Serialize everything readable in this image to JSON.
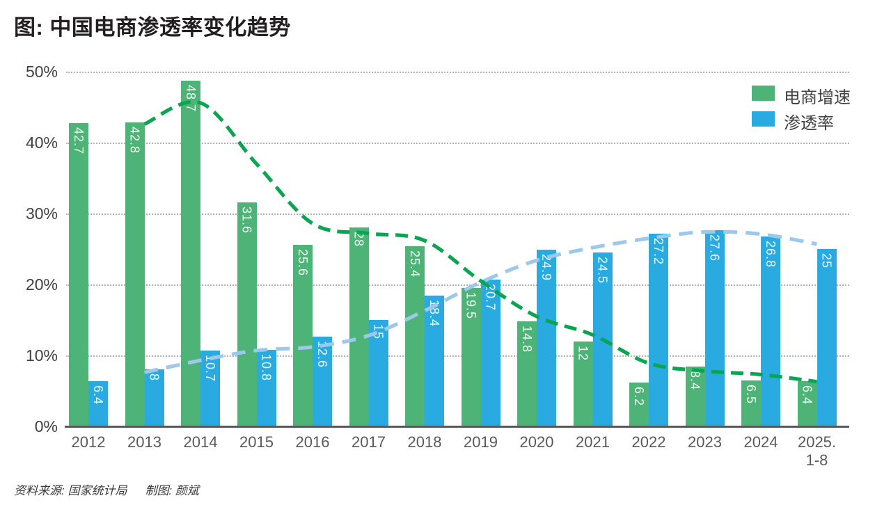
{
  "title": "图: 中国电商渗透率变化趋势",
  "legend": [
    {
      "label": "电商增速",
      "color": "#4eb377"
    },
    {
      "label": "渗透率",
      "color": "#29abe2"
    }
  ],
  "footer": {
    "source": "资料来源: 国家统计局",
    "credit": "制图: 颜斌"
  },
  "chart_data": {
    "type": "bar",
    "title": "图: 中国电商渗透率变化趋势",
    "categories": [
      "2012",
      "2013",
      "2014",
      "2015",
      "2016",
      "2017",
      "2018",
      "2019",
      "2020",
      "2021",
      "2022",
      "2023",
      "2024",
      "2025.\n1-8"
    ],
    "series": [
      {
        "name": "电商增速",
        "color": "#4eb377",
        "values": [
          42.7,
          42.8,
          48.7,
          31.6,
          25.6,
          28,
          25.4,
          19.5,
          14.8,
          12,
          6.2,
          8.4,
          6.5,
          6.4
        ]
      },
      {
        "name": "渗透率",
        "color": "#29abe2",
        "values": [
          6.4,
          8,
          10.7,
          10.8,
          12.6,
          15,
          18.4,
          20.7,
          24.9,
          24.5,
          27.2,
          27.6,
          26.8,
          25
        ]
      }
    ],
    "trend_lines": [
      {
        "name": "电商增速趋势线",
        "color": "#0aa551",
        "dash": "18 10",
        "values": [
          null,
          42.6,
          45.6,
          37,
          28.6,
          27.2,
          26.2,
          20.5,
          15.5,
          12.9,
          8.9,
          7.8,
          7.3,
          6.3
        ]
      },
      {
        "name": "渗透率趋势线",
        "color": "#9cc8ec",
        "dash": "20 12",
        "values": [
          null,
          7.6,
          9.3,
          10.7,
          11.2,
          12.8,
          16.3,
          20.3,
          23.4,
          25.2,
          26.5,
          27.4,
          27.1,
          25.7
        ]
      }
    ],
    "xlabel": "",
    "ylabel": "",
    "ylim": [
      0,
      50
    ],
    "yticks": [
      "50%",
      "40%",
      "30%",
      "20%",
      "10%",
      "0%"
    ],
    "grid": true,
    "legend_position": "top-right",
    "value_labels": "inside-top-rotated-90"
  }
}
